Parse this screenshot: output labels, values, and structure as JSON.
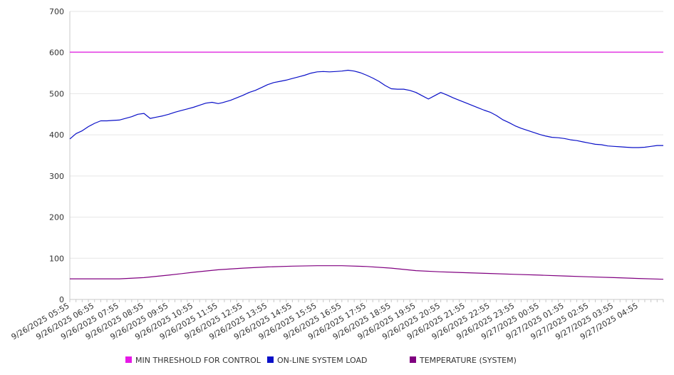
{
  "chart_data": {
    "type": "line",
    "title": "",
    "xlabel": "",
    "ylabel": "",
    "ylim": [
      0,
      700
    ],
    "yticks": [
      0,
      100,
      200,
      300,
      400,
      500,
      600,
      700
    ],
    "grid": true,
    "legend_position": "bottom",
    "x_tick_labels": [
      "9/26/2025 05:55",
      "9/26/2025 06:55",
      "9/26/2025 07:55",
      "9/26/2025 08:55",
      "9/26/2025 09:55",
      "9/26/2025 10:55",
      "9/26/2025 11:55",
      "9/26/2025 12:55",
      "9/26/2025 13:55",
      "9/26/2025 14:55",
      "9/26/2025 15:55",
      "9/26/2025 16:55",
      "9/26/2025 17:55",
      "9/26/2025 18:55",
      "9/26/2025 19:55",
      "9/26/2025 20:55",
      "9/26/2025 21:55",
      "9/26/2025 22:55",
      "9/26/2025 23:55",
      "9/27/2025 00:55",
      "9/27/2025 01:55",
      "9/27/2025 02:55",
      "9/27/2025 03:55",
      "9/27/2025 04:55"
    ],
    "x_end": "9/27/2025 05:55",
    "series": [
      {
        "name": "MIN THRESHOLD FOR CONTROL",
        "color": "#e619e6",
        "points": [
          [
            "9/26/2025 05:55",
            601
          ],
          [
            "9/27/2025 05:55",
            601
          ]
        ]
      },
      {
        "name": "ON-LINE SYSTEM LOAD",
        "color": "#0a10c8",
        "points": [
          [
            "9/26/2025 05:55",
            390
          ],
          [
            "9/26/2025 06:10",
            403
          ],
          [
            "9/26/2025 06:25",
            410
          ],
          [
            "9/26/2025 06:40",
            420
          ],
          [
            "9/26/2025 06:55",
            428
          ],
          [
            "9/26/2025 07:10",
            434
          ],
          [
            "9/26/2025 07:25",
            434
          ],
          [
            "9/26/2025 07:40",
            435
          ],
          [
            "9/26/2025 07:55",
            436
          ],
          [
            "9/26/2025 08:10",
            440
          ],
          [
            "9/26/2025 08:25",
            444
          ],
          [
            "9/26/2025 08:40",
            450
          ],
          [
            "9/26/2025 08:55",
            452
          ],
          [
            "9/26/2025 09:10",
            440
          ],
          [
            "9/26/2025 09:25",
            443
          ],
          [
            "9/26/2025 09:40",
            446
          ],
          [
            "9/26/2025 09:55",
            450
          ],
          [
            "9/26/2025 10:10",
            455
          ],
          [
            "9/26/2025 10:25",
            459
          ],
          [
            "9/26/2025 10:40",
            463
          ],
          [
            "9/26/2025 10:55",
            467
          ],
          [
            "9/26/2025 11:10",
            472
          ],
          [
            "9/26/2025 11:25",
            477
          ],
          [
            "9/26/2025 11:40",
            479
          ],
          [
            "9/26/2025 11:55",
            476
          ],
          [
            "9/26/2025 12:05",
            478
          ],
          [
            "9/26/2025 12:25",
            484
          ],
          [
            "9/26/2025 12:40",
            490
          ],
          [
            "9/26/2025 12:55",
            496
          ],
          [
            "9/26/2025 13:10",
            503
          ],
          [
            "9/26/2025 13:25",
            508
          ],
          [
            "9/26/2025 13:40",
            515
          ],
          [
            "9/26/2025 13:55",
            522
          ],
          [
            "9/26/2025 14:10",
            527
          ],
          [
            "9/26/2025 14:25",
            530
          ],
          [
            "9/26/2025 14:40",
            533
          ],
          [
            "9/26/2025 14:55",
            537
          ],
          [
            "9/26/2025 15:10",
            541
          ],
          [
            "9/26/2025 15:25",
            545
          ],
          [
            "9/26/2025 15:40",
            550
          ],
          [
            "9/26/2025 15:55",
            553
          ],
          [
            "9/26/2025 16:10",
            554
          ],
          [
            "9/26/2025 16:25",
            553
          ],
          [
            "9/26/2025 16:40",
            554
          ],
          [
            "9/26/2025 16:55",
            555
          ],
          [
            "9/26/2025 17:10",
            557
          ],
          [
            "9/26/2025 17:25",
            555
          ],
          [
            "9/26/2025 17:40",
            551
          ],
          [
            "9/26/2025 17:55",
            545
          ],
          [
            "9/26/2025 18:10",
            538
          ],
          [
            "9/26/2025 18:25",
            530
          ],
          [
            "9/26/2025 18:40",
            520
          ],
          [
            "9/26/2025 18:55",
            512
          ],
          [
            "9/26/2025 19:10",
            511
          ],
          [
            "9/26/2025 19:25",
            511
          ],
          [
            "9/26/2025 19:40",
            508
          ],
          [
            "9/26/2025 19:55",
            503
          ],
          [
            "9/26/2025 20:10",
            495
          ],
          [
            "9/26/2025 20:25",
            487
          ],
          [
            "9/26/2025 20:40",
            495
          ],
          [
            "9/26/2025 20:55",
            503
          ],
          [
            "9/26/2025 21:10",
            497
          ],
          [
            "9/26/2025 21:25",
            490
          ],
          [
            "9/26/2025 21:40",
            484
          ],
          [
            "9/26/2025 21:55",
            478
          ],
          [
            "9/26/2025 22:10",
            472
          ],
          [
            "9/26/2025 22:25",
            466
          ],
          [
            "9/26/2025 22:40",
            460
          ],
          [
            "9/26/2025 22:55",
            455
          ],
          [
            "9/26/2025 23:10",
            447
          ],
          [
            "9/26/2025 23:25",
            437
          ],
          [
            "9/26/2025 23:40",
            430
          ],
          [
            "9/26/2025 23:55",
            422
          ],
          [
            "9/27/2025 00:10",
            416
          ],
          [
            "9/27/2025 00:25",
            411
          ],
          [
            "9/27/2025 00:40",
            406
          ],
          [
            "9/27/2025 00:55",
            401
          ],
          [
            "9/27/2025 01:10",
            397
          ],
          [
            "9/27/2025 01:25",
            394
          ],
          [
            "9/27/2025 01:40",
            393
          ],
          [
            "9/27/2025 01:55",
            391
          ],
          [
            "9/27/2025 02:10",
            388
          ],
          [
            "9/27/2025 02:25",
            386
          ],
          [
            "9/27/2025 02:40",
            383
          ],
          [
            "9/27/2025 02:55",
            380
          ],
          [
            "9/27/2025 03:10",
            377
          ],
          [
            "9/27/2025 03:25",
            376
          ],
          [
            "9/27/2025 03:40",
            373
          ],
          [
            "9/27/2025 03:55",
            372
          ],
          [
            "9/27/2025 04:10",
            371
          ],
          [
            "9/27/2025 04:25",
            370
          ],
          [
            "9/27/2025 04:40",
            369
          ],
          [
            "9/27/2025 04:55",
            369
          ],
          [
            "9/27/2025 05:10",
            370
          ],
          [
            "9/27/2025 05:25",
            372
          ],
          [
            "9/27/2025 05:40",
            374
          ],
          [
            "9/27/2025 05:55",
            374
          ]
        ]
      },
      {
        "name": "TEMPERATURE (SYSTEM)",
        "color": "#800080",
        "points": [
          [
            "9/26/2025 05:55",
            50
          ],
          [
            "9/26/2025 06:55",
            50
          ],
          [
            "9/26/2025 07:55",
            50
          ],
          [
            "9/26/2025 08:55",
            53
          ],
          [
            "9/26/2025 09:55",
            59
          ],
          [
            "9/26/2025 10:55",
            66
          ],
          [
            "9/26/2025 11:55",
            72
          ],
          [
            "9/26/2025 12:55",
            76
          ],
          [
            "9/26/2025 13:55",
            79
          ],
          [
            "9/26/2025 14:55",
            81
          ],
          [
            "9/26/2025 15:55",
            82
          ],
          [
            "9/26/2025 16:55",
            82
          ],
          [
            "9/26/2025 17:55",
            80
          ],
          [
            "9/26/2025 18:55",
            76
          ],
          [
            "9/26/2025 19:55",
            70
          ],
          [
            "9/26/2025 20:55",
            67
          ],
          [
            "9/26/2025 21:55",
            65
          ],
          [
            "9/26/2025 22:55",
            63
          ],
          [
            "9/26/2025 23:55",
            61
          ],
          [
            "9/27/2025 00:55",
            59
          ],
          [
            "9/27/2025 01:55",
            57
          ],
          [
            "9/27/2025 02:55",
            55
          ],
          [
            "9/27/2025 03:55",
            53
          ],
          [
            "9/27/2025 04:55",
            51
          ],
          [
            "9/27/2025 05:55",
            49
          ]
        ]
      }
    ]
  }
}
